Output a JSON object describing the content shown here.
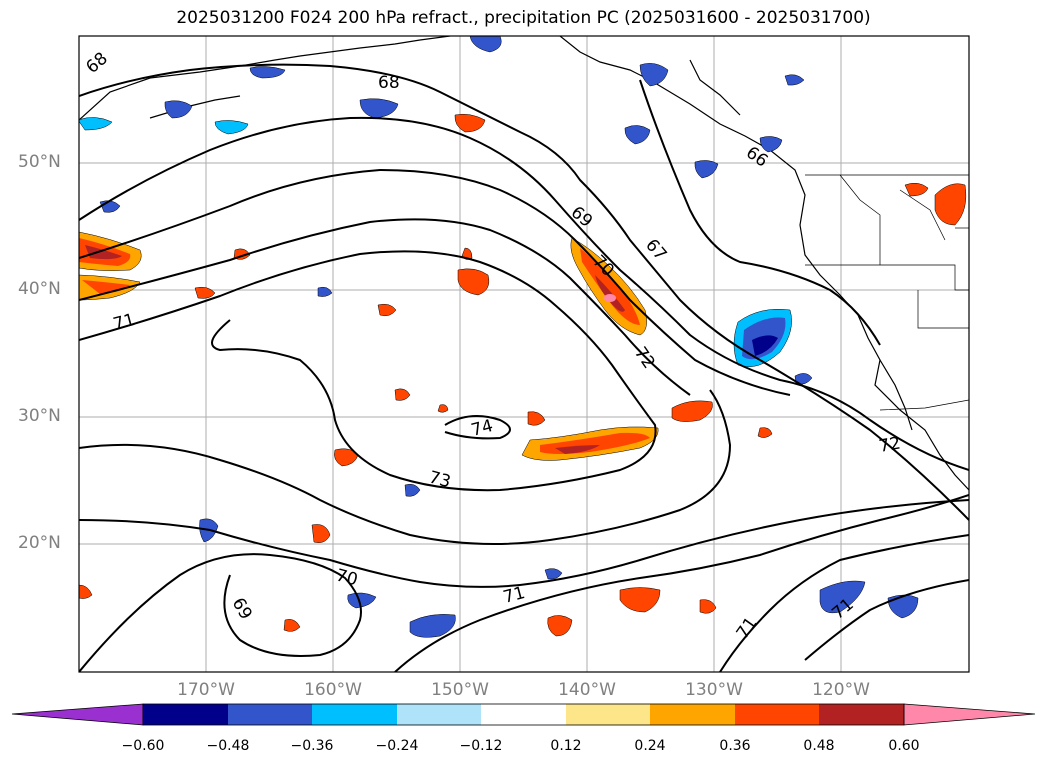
{
  "title": "2025031200 F024 200 hPa refract., precipitation PC (2025031600 - 2025031700)",
  "lat_labels": [
    "50°N",
    "40°N",
    "30°N",
    "20°N"
  ],
  "lon_labels": [
    "170°W",
    "160°W",
    "150°W",
    "140°W",
    "130°W",
    "120°W"
  ],
  "contour_labels": [
    "68",
    "68",
    "69",
    "70",
    "67",
    "66",
    "71",
    "72",
    "74",
    "73",
    "70",
    "69",
    "71",
    "71",
    "71",
    "72"
  ],
  "colorbar": {
    "ticks": [
      "−0.60",
      "−0.48",
      "−0.36",
      "−0.24",
      "−0.12",
      "0.12",
      "0.24",
      "0.36",
      "0.48",
      "0.60"
    ],
    "colors": [
      "#9b30d0",
      "#00008b",
      "#3355cc",
      "#00bfff",
      "#aee3fa",
      "#ffffff",
      "#fde68a",
      "#ffa500",
      "#ff4500",
      "#b22222",
      "#ff88aa"
    ]
  },
  "colors": {
    "neg_light": "#aee3fa",
    "neg_mid": "#00bfff",
    "neg_blue": "#3355cc",
    "neg_dark": "#00008b",
    "pos_light": "#fde68a",
    "pos_mid": "#ffa500",
    "pos_red": "#ff4500",
    "pos_dark": "#b22222",
    "pos_pink": "#ff88aa"
  }
}
